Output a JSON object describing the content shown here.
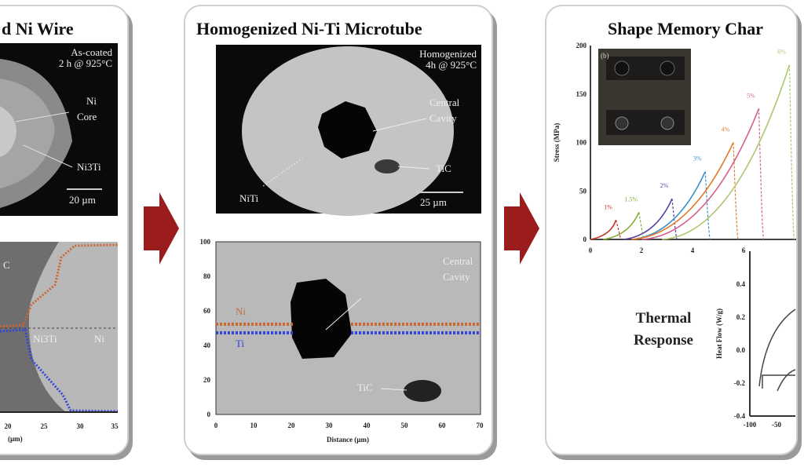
{
  "panel1": {
    "title": "d Ni Wire",
    "micrograph": {
      "condition_line1": "As-coated",
      "condition_line2": "2 h @ 925°C",
      "label_core": "Ni",
      "label_core2": "Core",
      "label_phase": "Ni3Ti",
      "scale_bar": "20 µm"
    },
    "profile": {
      "x_ticks": [
        "20",
        "25",
        "30",
        "35"
      ],
      "xlabel": "(µm)",
      "label_phase": "Ni3Ti",
      "label_ni": "Ni",
      "label_c": "C"
    }
  },
  "panel2": {
    "title": "Homogenized Ni-Ti Microtube",
    "micrograph": {
      "condition_line1": "Homogenized",
      "condition_line2": "4h @ 925°C",
      "label_cavity1": "Central",
      "label_cavity2": "Cavity",
      "label_tic": "TiC",
      "label_niti": "NiTi",
      "scale_bar": "25 µm"
    },
    "profile": {
      "y_ticks": [
        "0",
        "20",
        "40",
        "60",
        "80",
        "100"
      ],
      "x_ticks": [
        "0",
        "10",
        "20",
        "30",
        "40",
        "50",
        "60",
        "70"
      ],
      "xlabel": "Distance (µm)",
      "label_ni": "Ni",
      "label_ti": "Ti",
      "label_cavity1": "Central",
      "label_cavity2": "Cavity",
      "label_tic": "TiC"
    }
  },
  "panel3": {
    "title": "Shape Memory Char",
    "thermal_line1": "Thermal",
    "thermal_line2": "Response",
    "inset_label": "(b)",
    "colors": {
      "arrow": "#9b1c1c"
    }
  },
  "chart_data": [
    {
      "type": "line",
      "ylabel": "Stress (MPa)",
      "xlim": [
        0,
        8
      ],
      "ylim": [
        0,
        200
      ],
      "x_ticks": [
        "0",
        "2",
        "4",
        "6"
      ],
      "y_ticks": [
        "0",
        "50",
        "100",
        "150",
        "200"
      ],
      "series": [
        {
          "name": "1%",
          "color": "#c0392b",
          "x": [
            0,
            1
          ],
          "y": [
            0,
            20
          ]
        },
        {
          "name": "1.5%",
          "color": "#7fb03a",
          "x": [
            0.5,
            1.9
          ],
          "y": [
            0,
            28
          ]
        },
        {
          "name": "2%",
          "color": "#5b3fa0",
          "x": [
            1.3,
            3.2
          ],
          "y": [
            0,
            42
          ]
        },
        {
          "name": "3%",
          "color": "#3a8fc8",
          "x": [
            1.6,
            4.5
          ],
          "y": [
            0,
            70
          ]
        },
        {
          "name": "4%",
          "color": "#e07b2a",
          "x": [
            1.6,
            5.6
          ],
          "y": [
            0,
            100
          ]
        },
        {
          "name": "5%",
          "color": "#d4608f",
          "x": [
            2.0,
            6.6
          ],
          "y": [
            0,
            135
          ]
        },
        {
          "name": "6%",
          "color": "#a9c86b",
          "x": [
            2.8,
            7.8
          ],
          "y": [
            0,
            180
          ]
        }
      ]
    },
    {
      "type": "line",
      "ylabel": "Heat Flow (W/g)",
      "y_ticks": [
        "0.4",
        "0.2",
        "0.0",
        "-0.2",
        "-0.4"
      ],
      "x_ticks": [
        "-100",
        "-50"
      ]
    }
  ]
}
